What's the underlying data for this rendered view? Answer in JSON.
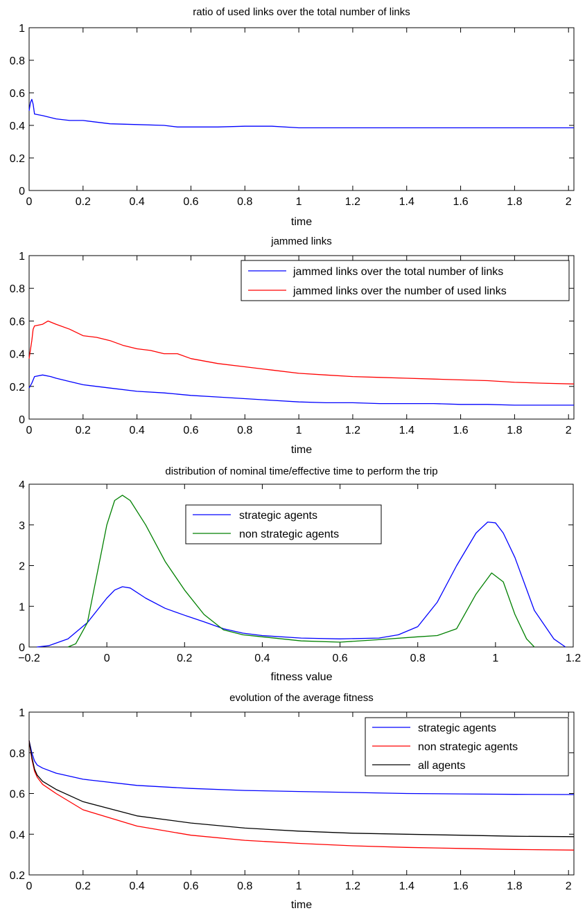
{
  "chart_data": [
    {
      "type": "line",
      "title": "ratio of used links over the total number of links",
      "xlabel": "time",
      "ylabel": "",
      "xlim": [
        0,
        2.02
      ],
      "ylim": [
        0,
        1
      ],
      "xticks": [
        "0",
        "0.2",
        "0.4",
        "0.6",
        "0.8",
        "1",
        "1.2",
        "1.4",
        "1.6",
        "1.8",
        "2"
      ],
      "yticks": [
        "0",
        "0.2",
        "0.4",
        "0.6",
        "0.8",
        "1"
      ],
      "grid": false,
      "legend": null,
      "series": [
        {
          "color": "#0000ff",
          "x": [
            0,
            0.005,
            0.01,
            0.015,
            0.02,
            0.05,
            0.1,
            0.15,
            0.2,
            0.3,
            0.4,
            0.5,
            0.55,
            0.6,
            0.7,
            0.8,
            0.9,
            1.0,
            1.05,
            1.1,
            1.2,
            1.3,
            1.4,
            1.5,
            1.6,
            1.7,
            1.8,
            1.9,
            2.02
          ],
          "y": [
            0.49,
            0.54,
            0.56,
            0.53,
            0.47,
            0.46,
            0.44,
            0.43,
            0.43,
            0.41,
            0.405,
            0.4,
            0.39,
            0.39,
            0.39,
            0.395,
            0.395,
            0.385,
            0.385,
            0.385,
            0.385,
            0.385,
            0.385,
            0.385,
            0.385,
            0.385,
            0.385,
            0.385,
            0.385
          ]
        }
      ]
    },
    {
      "type": "line",
      "title": "jammed links",
      "xlabel": "time",
      "ylabel": "",
      "xlim": [
        0,
        2.02
      ],
      "ylim": [
        0,
        1
      ],
      "xticks": [
        "0",
        "0.2",
        "0.4",
        "0.6",
        "0.8",
        "1",
        "1.2",
        "1.4",
        "1.6",
        "1.8",
        "2"
      ],
      "yticks": [
        "0",
        "0.2",
        "0.4",
        "0.6",
        "0.8",
        "1"
      ],
      "grid": false,
      "legend": "top-right",
      "series": [
        {
          "name": "jammed links over the total number of links",
          "color": "#0000ff",
          "x": [
            0,
            0.01,
            0.02,
            0.05,
            0.08,
            0.1,
            0.15,
            0.2,
            0.3,
            0.4,
            0.5,
            0.6,
            0.7,
            0.8,
            0.9,
            1.0,
            1.1,
            1.2,
            1.3,
            1.4,
            1.5,
            1.6,
            1.7,
            1.8,
            1.9,
            2.02
          ],
          "y": [
            0.19,
            0.22,
            0.26,
            0.27,
            0.26,
            0.25,
            0.23,
            0.21,
            0.19,
            0.17,
            0.16,
            0.145,
            0.135,
            0.125,
            0.115,
            0.105,
            0.1,
            0.1,
            0.095,
            0.095,
            0.095,
            0.09,
            0.09,
            0.085,
            0.085,
            0.085
          ]
        },
        {
          "name": "jammed links over the number of used links",
          "color": "#ff0000",
          "x": [
            0,
            0.01,
            0.015,
            0.02,
            0.05,
            0.07,
            0.1,
            0.15,
            0.2,
            0.25,
            0.3,
            0.35,
            0.4,
            0.45,
            0.5,
            0.55,
            0.6,
            0.7,
            0.8,
            0.9,
            1.0,
            1.1,
            1.2,
            1.3,
            1.4,
            1.5,
            1.6,
            1.7,
            1.8,
            1.9,
            2.02
          ],
          "y": [
            0.37,
            0.48,
            0.55,
            0.57,
            0.58,
            0.6,
            0.58,
            0.55,
            0.51,
            0.5,
            0.48,
            0.45,
            0.43,
            0.42,
            0.4,
            0.4,
            0.37,
            0.34,
            0.32,
            0.3,
            0.28,
            0.27,
            0.26,
            0.255,
            0.25,
            0.245,
            0.24,
            0.235,
            0.225,
            0.22,
            0.215
          ]
        }
      ]
    },
    {
      "type": "line",
      "title": "distribution of nominal time/effective time to perform the trip",
      "xlabel": "fitness value",
      "ylabel": "",
      "xlim": [
        -0.2,
        1.2
      ],
      "ylim": [
        0,
        4
      ],
      "xticks": [
        "−0.2",
        "0",
        "0.2",
        "0.4",
        "0.6",
        "0.8",
        "1",
        "1.2"
      ],
      "yticks": [
        "0",
        "1",
        "2",
        "3",
        "4"
      ],
      "grid": false,
      "legend": "top-center",
      "series": [
        {
          "name": "strategic agents",
          "color": "#0000ff",
          "x": [
            -0.18,
            -0.15,
            -0.1,
            -0.05,
            0,
            0.02,
            0.04,
            0.06,
            0.1,
            0.15,
            0.2,
            0.25,
            0.3,
            0.35,
            0.4,
            0.5,
            0.6,
            0.7,
            0.75,
            0.8,
            0.85,
            0.9,
            0.95,
            0.98,
            1.0,
            1.02,
            1.05,
            1.1,
            1.15,
            1.18
          ],
          "y": [
            0.0,
            0.03,
            0.2,
            0.6,
            1.2,
            1.4,
            1.48,
            1.45,
            1.2,
            0.95,
            0.78,
            0.62,
            0.45,
            0.34,
            0.28,
            0.22,
            0.2,
            0.22,
            0.3,
            0.5,
            1.1,
            2.0,
            2.8,
            3.07,
            3.05,
            2.8,
            2.2,
            0.9,
            0.2,
            0.0
          ]
        },
        {
          "name": "non strategic agents",
          "color": "#008000",
          "x": [
            -0.1,
            -0.08,
            -0.05,
            0,
            0.02,
            0.04,
            0.06,
            0.1,
            0.15,
            0.2,
            0.25,
            0.3,
            0.35,
            0.4,
            0.5,
            0.6,
            0.7,
            0.8,
            0.85,
            0.9,
            0.95,
            0.99,
            1.02,
            1.05,
            1.08,
            1.1
          ],
          "y": [
            0.0,
            0.08,
            0.6,
            3.0,
            3.6,
            3.73,
            3.6,
            3.0,
            2.1,
            1.4,
            0.8,
            0.42,
            0.3,
            0.25,
            0.15,
            0.12,
            0.18,
            0.25,
            0.28,
            0.45,
            1.3,
            1.82,
            1.6,
            0.8,
            0.2,
            0.0
          ]
        }
      ]
    },
    {
      "type": "line",
      "title": "evolution of the average fitness",
      "xlabel": "time",
      "ylabel": "",
      "xlim": [
        0,
        2.02
      ],
      "ylim": [
        0.2,
        1
      ],
      "xticks": [
        "0",
        "0.2",
        "0.4",
        "0.6",
        "0.8",
        "1",
        "1.2",
        "1.4",
        "1.6",
        "1.8",
        "2"
      ],
      "yticks": [
        "0.2",
        "0.4",
        "0.6",
        "0.8",
        "1"
      ],
      "grid": false,
      "legend": "top-right",
      "series": [
        {
          "name": "strategic agents",
          "color": "#0000ff",
          "x": [
            0,
            0.01,
            0.02,
            0.03,
            0.05,
            0.1,
            0.2,
            0.4,
            0.6,
            0.8,
            1.0,
            1.2,
            1.4,
            1.6,
            1.8,
            2.02
          ],
          "y": [
            0.86,
            0.8,
            0.76,
            0.74,
            0.725,
            0.7,
            0.67,
            0.64,
            0.625,
            0.615,
            0.61,
            0.605,
            0.6,
            0.598,
            0.596,
            0.595
          ]
        },
        {
          "name": "non strategic agents",
          "color": "#ff0000",
          "x": [
            0,
            0.01,
            0.02,
            0.03,
            0.05,
            0.1,
            0.2,
            0.4,
            0.6,
            0.8,
            1.0,
            1.2,
            1.4,
            1.6,
            1.8,
            2.02
          ],
          "y": [
            0.86,
            0.77,
            0.71,
            0.68,
            0.645,
            0.6,
            0.52,
            0.44,
            0.395,
            0.37,
            0.355,
            0.343,
            0.335,
            0.33,
            0.325,
            0.322
          ]
        },
        {
          "name": "all agents",
          "color": "#000000",
          "x": [
            0,
            0.01,
            0.02,
            0.03,
            0.05,
            0.1,
            0.2,
            0.4,
            0.6,
            0.8,
            1.0,
            1.2,
            1.4,
            1.6,
            1.8,
            2.02
          ],
          "y": [
            0.86,
            0.78,
            0.72,
            0.69,
            0.66,
            0.62,
            0.56,
            0.49,
            0.455,
            0.43,
            0.415,
            0.405,
            0.4,
            0.395,
            0.39,
            0.388
          ]
        }
      ]
    }
  ]
}
